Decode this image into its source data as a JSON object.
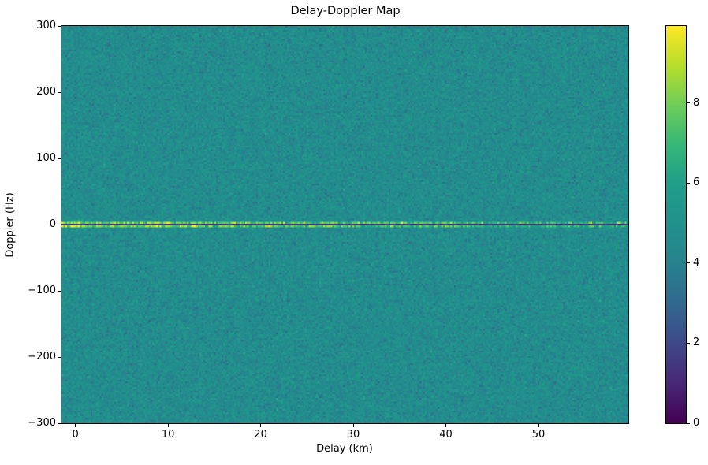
{
  "chart": {
    "title": "Delay-Doppler Map",
    "xlabel": "Delay (km)",
    "ylabel": "Doppler (Hz)"
  },
  "chart_data": {
    "type": "heatmap",
    "title": "Delay-Doppler Map",
    "xlabel": "Delay (km)",
    "ylabel": "Doppler (Hz)",
    "x_extent_km": [
      -1.5,
      59.7
    ],
    "y_extent_hz": [
      -300,
      300
    ],
    "x_ticks": [
      0,
      10,
      20,
      30,
      40,
      50
    ],
    "y_ticks": [
      300,
      200,
      100,
      0,
      -100,
      -200,
      -300
    ],
    "grid_lines": false,
    "colorbar": {
      "position": "right",
      "ticks": [
        0,
        2,
        4,
        6,
        8
      ],
      "vmin": 0,
      "vmax": 9.93,
      "colormap": "viridis"
    },
    "colormap_stops": [
      "#440154",
      "#482878",
      "#3e4989",
      "#31688e",
      "#26828e",
      "#21918c",
      "#1f9e89",
      "#35b779",
      "#6dcd59",
      "#b5de2b",
      "#fde725"
    ],
    "background_noise": {
      "mean": 4.65,
      "std": 0.55
    },
    "features": {
      "zero_doppler_dark_line": {
        "doppler_hz": 0,
        "value": 1.5,
        "noise_std": 0.35
      },
      "zero_doppler_ridge": {
        "doppler_offset_hz": 2.8,
        "base_value_at_0km": 8.0,
        "base_value_at_60km": 6.2,
        "speckle_std": 1.0
      },
      "origin_halo": {
        "center_delay_km": 0.2,
        "delay_sigma_km": 1.3,
        "doppler_sigma_hz": 7,
        "peak_added_value": 2.9
      },
      "bright_spots": [
        {
          "delay_km": 0.1,
          "value": 9.9,
          "width_km": 0.8
        },
        {
          "delay_km": 2.3,
          "value": 8.8,
          "width_km": 0.4
        },
        {
          "delay_km": 4.3,
          "value": 8.4,
          "width_km": 0.35
        },
        {
          "delay_km": 8.0,
          "value": 8.3,
          "width_km": 0.35
        },
        {
          "delay_km": 12.9,
          "value": 9.5,
          "width_km": 0.6
        },
        {
          "delay_km": 16.0,
          "value": 8.2,
          "width_km": 0.3
        },
        {
          "delay_km": 20.5,
          "value": 8.4,
          "width_km": 0.3
        },
        {
          "delay_km": 23.4,
          "value": 9.3,
          "width_km": 0.45
        },
        {
          "delay_km": 28.0,
          "value": 8.2,
          "width_km": 0.3
        },
        {
          "delay_km": 30.5,
          "value": 8.6,
          "width_km": 0.35
        },
        {
          "delay_km": 34.2,
          "value": 9.0,
          "width_km": 0.4
        },
        {
          "delay_km": 38.0,
          "value": 8.3,
          "width_km": 0.3
        },
        {
          "delay_km": 41.0,
          "value": 8.8,
          "width_km": 0.35
        },
        {
          "delay_km": 44.0,
          "value": 8.2,
          "width_km": 0.3
        },
        {
          "delay_km": 46.5,
          "value": 8.4,
          "width_km": 0.3
        },
        {
          "delay_km": 51.0,
          "value": 8.3,
          "width_km": 0.3
        },
        {
          "delay_km": 54.0,
          "value": 8.0,
          "width_km": 0.3
        },
        {
          "delay_km": 56.6,
          "value": 8.4,
          "width_km": 0.3
        },
        {
          "delay_km": 58.5,
          "value": 8.0,
          "width_km": 0.3
        }
      ]
    }
  }
}
